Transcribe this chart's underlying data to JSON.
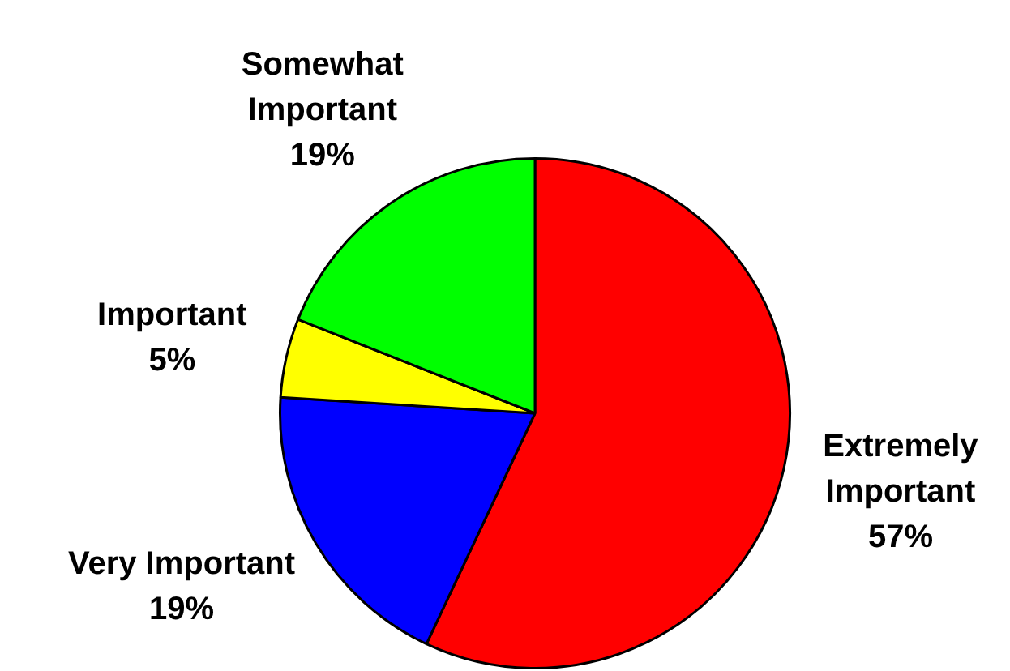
{
  "chart_data": {
    "type": "pie",
    "categories": [
      "Extremely Important",
      "Very Important",
      "Important",
      "Somewhat Important"
    ],
    "values": [
      57,
      19,
      5,
      19
    ],
    "colors": [
      "#ff0000",
      "#0000ff",
      "#ffff00",
      "#00ff00"
    ],
    "value_labels": [
      "57%",
      "19%",
      "5%",
      "19%"
    ]
  }
}
